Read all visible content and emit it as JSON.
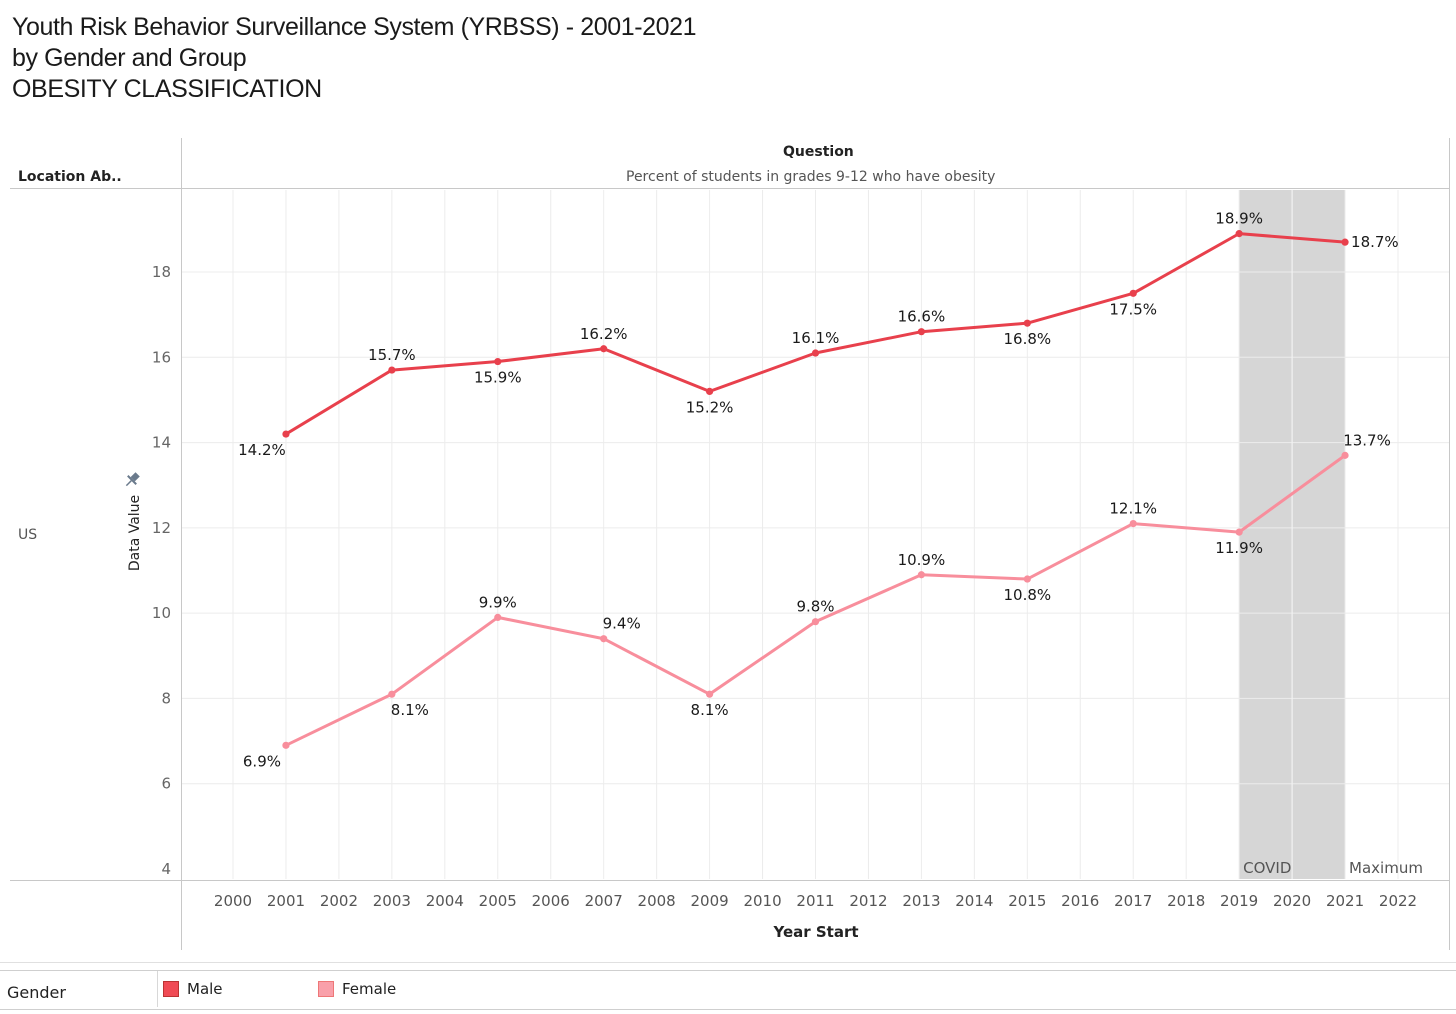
{
  "title": {
    "line1": "Youth Risk Behavior Surveillance System (YRBSS) - 2001-2021",
    "line2": "by Gender and Group",
    "line3": "OBESITY CLASSIFICATION"
  },
  "headers": {
    "location": "Location Ab..",
    "question_label": "Question",
    "question_value": "Percent of students in grades 9-12 who have obesity",
    "row_value": "US"
  },
  "colors": {
    "male": "#e8404c",
    "female": "#f88e9c",
    "covid_band": "#d6d6d6",
    "grid": "#ececec"
  },
  "legend": {
    "title": "Gender",
    "items": [
      {
        "label": "Male",
        "color": "#f04b55"
      },
      {
        "label": "Female",
        "color": "#f9a0aa"
      }
    ]
  },
  "chart_data": {
    "type": "line",
    "xlabel": "Year Start",
    "ylabel": "Data Value",
    "xlim": [
      1999.5,
      2022.5
    ],
    "ylim": [
      4,
      19.8
    ],
    "x_ticks": [
      2000,
      2001,
      2002,
      2003,
      2004,
      2005,
      2006,
      2007,
      2008,
      2009,
      2010,
      2011,
      2012,
      2013,
      2014,
      2015,
      2016,
      2017,
      2018,
      2019,
      2020,
      2021,
      2022
    ],
    "y_ticks": [
      4,
      6,
      8,
      10,
      12,
      14,
      16,
      18
    ],
    "series": [
      {
        "name": "Male",
        "x": [
          2001,
          2003,
          2005,
          2007,
          2009,
          2011,
          2013,
          2015,
          2017,
          2019,
          2021
        ],
        "values": [
          14.2,
          15.7,
          15.9,
          16.2,
          15.2,
          16.1,
          16.6,
          16.8,
          17.5,
          18.9,
          18.7
        ],
        "labels": [
          "14.2%",
          "15.7%",
          "15.9%",
          "16.2%",
          "15.2%",
          "16.1%",
          "16.6%",
          "16.8%",
          "17.5%",
          "18.9%",
          "18.7%"
        ],
        "label_pos": [
          "below",
          "above",
          "below",
          "above",
          "below",
          "above",
          "above",
          "below",
          "below",
          "above",
          "right"
        ]
      },
      {
        "name": "Female",
        "x": [
          2001,
          2003,
          2005,
          2007,
          2009,
          2011,
          2013,
          2015,
          2017,
          2019,
          2021
        ],
        "values": [
          6.9,
          8.1,
          9.9,
          9.4,
          8.1,
          9.8,
          10.9,
          10.8,
          12.1,
          11.9,
          13.7
        ],
        "labels": [
          "6.9%",
          "8.1%",
          "9.9%",
          "9.4%",
          "8.1%",
          "9.8%",
          "10.9%",
          "10.8%",
          "12.1%",
          "11.9%",
          "13.7%"
        ],
        "label_pos": [
          "below",
          "below",
          "above",
          "above",
          "below",
          "above",
          "above",
          "below",
          "above",
          "below",
          "above"
        ]
      }
    ],
    "annotations": [
      {
        "label": "COVID",
        "x_start": 2019,
        "x_end": 2021
      },
      {
        "label": "Maximum",
        "x": 2021
      }
    ]
  }
}
